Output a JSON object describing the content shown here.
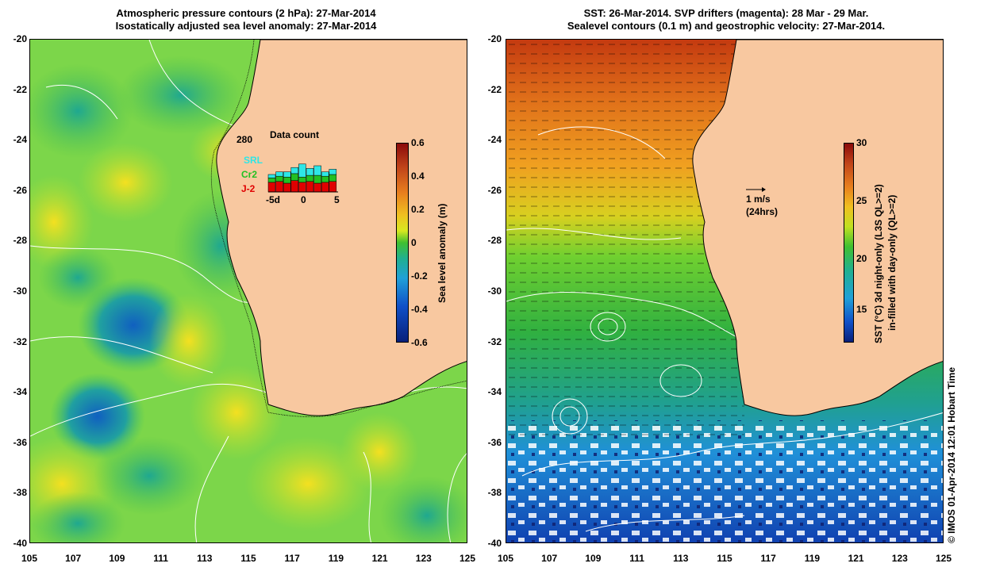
{
  "left_panel": {
    "title_line1": "Atmospheric pressure contours (2 hPa): 27-Mar-2014",
    "title_line2": "Isostatically adjusted sea level anomaly: 27-Mar-2014",
    "y_ticks": [
      "-20",
      "-22",
      "-24",
      "-26",
      "-28",
      "-30",
      "-32",
      "-34",
      "-36",
      "-38",
      "-40"
    ],
    "x_ticks": [
      "105",
      "107",
      "109",
      "111",
      "113",
      "115",
      "117",
      "119",
      "121",
      "123",
      "125"
    ],
    "colorbar": {
      "label": "Sea level anomaly (m)",
      "ticks": [
        "0.6",
        "0.4",
        "0.2",
        "0",
        "-0.2",
        "-0.4",
        "-0.6"
      ]
    },
    "inset": {
      "title": "Data count",
      "max_label": "280",
      "x_ticks": [
        "-5d",
        "0",
        "5"
      ],
      "legend": [
        {
          "name": "SRL",
          "color": "#2ee6e6"
        },
        {
          "name": "Cr2",
          "color": "#22c022"
        },
        {
          "name": "J-2",
          "color": "#e00000"
        }
      ]
    }
  },
  "right_panel": {
    "title_line1": "SST: 26-Mar-2014. SVP drifters (magenta): 28 Mar - 29 Mar.",
    "title_line2": "Sealevel contours (0.1 m) and geostrophic velocity: 27-Mar-2014.",
    "y_ticks": [
      "-20",
      "-22",
      "-24",
      "-26",
      "-28",
      "-30",
      "-32",
      "-34",
      "-36",
      "-38",
      "-40"
    ],
    "x_ticks": [
      "105",
      "107",
      "109",
      "111",
      "113",
      "115",
      "117",
      "119",
      "121",
      "123",
      "125"
    ],
    "velocity_label_1": "1 m/s",
    "velocity_label_2": "(24hrs)",
    "colorbar": {
      "label_1": "SST (°C) 3d night-only (L3S QL>=2)",
      "label_2": "in-filled with day-only (QL>=2)",
      "ticks": [
        "30",
        "25",
        "20",
        "15"
      ]
    }
  },
  "credit": "© IMOS 01-Apr-2014 12:01 Hobart Time",
  "colors": {
    "land": "#f8c8a0",
    "sla_mid": "#7cd64a",
    "coast": "#000000"
  }
}
